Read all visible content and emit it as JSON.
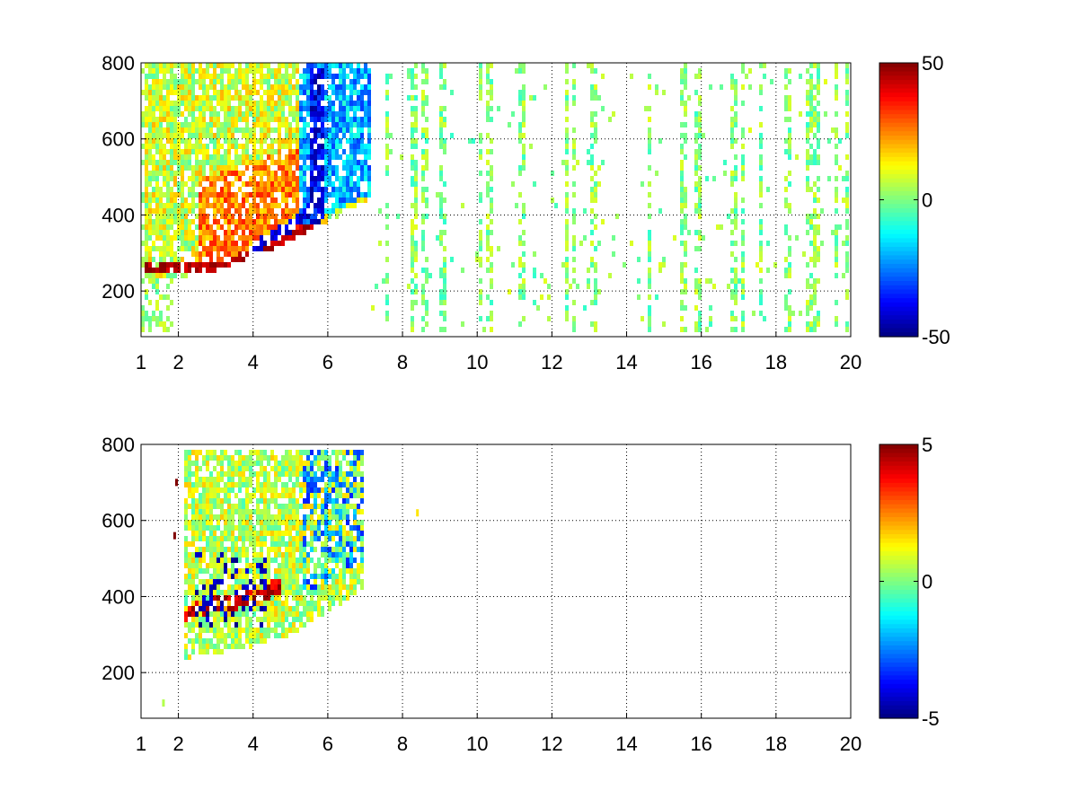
{
  "figure": {
    "background": "#ffffff",
    "colormap": "jet"
  },
  "chart_data": [
    {
      "type": "heatmap",
      "title": "",
      "xlabel": "",
      "ylabel": "",
      "xlim": [
        1,
        20
      ],
      "ylim": [
        80,
        800
      ],
      "x_ticks": [
        1,
        2,
        4,
        6,
        8,
        10,
        12,
        14,
        16,
        18,
        20
      ],
      "x_tick_labels": [
        "1",
        "2",
        "4",
        "6",
        "8",
        "10",
        "12",
        "14",
        "16",
        "18",
        "20"
      ],
      "y_ticks": [
        200,
        400,
        600,
        800
      ],
      "y_tick_labels": [
        "200",
        "400",
        "600",
        "800"
      ],
      "grid": true,
      "grid_style": "dotted",
      "colorbar": {
        "clim": [
          -50,
          50
        ],
        "tick_values": [
          50,
          0,
          -50
        ],
        "tick_labels": [
          "50",
          "0",
          "-50"
        ]
      },
      "pattern": {
        "dense_region": {
          "x_range": [
            1.1,
            7.2
          ],
          "lower_boundary": [
            [
              2.3,
              240
            ],
            [
              3,
              255
            ],
            [
              4,
              290
            ],
            [
              5,
              330
            ],
            [
              6,
              380
            ],
            [
              7,
              430
            ]
          ],
          "upper_limit": 800
        },
        "hot_band": {
          "points": [
            [
              2.3,
              255
            ],
            [
              3,
              262
            ],
            [
              4,
              300
            ],
            [
              5,
              345
            ],
            [
              5.8,
              380
            ]
          ],
          "value": 45
        },
        "warm_area": {
          "x_range": [
            2.5,
            5.8
          ],
          "value": 25
        },
        "cold_band": {
          "points": [
            [
              4,
              315
            ],
            [
              5,
              370
            ],
            [
              5.6,
              420
            ],
            [
              5.8,
              600
            ],
            [
              5.9,
              760
            ]
          ],
          "value": -42
        },
        "cool_area": {
          "x_range": [
            5.2,
            7.2
          ],
          "value": -20
        },
        "sparse_region": {
          "x_range": [
            7.2,
            20
          ],
          "value_range": [
            -8,
            10
          ],
          "columns": [
            7.6,
            8.3,
            8.6,
            9.1,
            10.1,
            10.3,
            11.2,
            12.4,
            12.6,
            13.1,
            14.6,
            15.5,
            15.9,
            16.9,
            17.1,
            17.6,
            18.3,
            18.9,
            19.1,
            19.6,
            19.9
          ]
        }
      }
    },
    {
      "type": "heatmap",
      "title": "",
      "xlabel": "",
      "ylabel": "",
      "xlim": [
        1,
        20
      ],
      "ylim": [
        80,
        800
      ],
      "x_ticks": [
        1,
        2,
        4,
        6,
        8,
        10,
        12,
        14,
        16,
        18,
        20
      ],
      "x_tick_labels": [
        "1",
        "2",
        "4",
        "6",
        "8",
        "10",
        "12",
        "14",
        "16",
        "18",
        "20"
      ],
      "y_ticks": [
        200,
        400,
        600,
        800
      ],
      "y_tick_labels": [
        "200",
        "400",
        "600",
        "800"
      ],
      "grid": true,
      "grid_style": "dotted",
      "colorbar": {
        "clim": [
          -5,
          5
        ],
        "tick_values": [
          5,
          0,
          -5
        ],
        "tick_labels": [
          "5",
          "0",
          "-5"
        ]
      },
      "pattern": {
        "dense_region": {
          "x_range": [
            2.2,
            7
          ],
          "lower_boundary": [
            [
              2.3,
              240
            ],
            [
              3,
              250
            ],
            [
              4,
              270
            ],
            [
              5,
              300
            ],
            [
              6,
              360
            ],
            [
              7,
              420
            ]
          ],
          "upper_limit": 790
        },
        "hot_band": {
          "points": [
            [
              2.4,
              360
            ],
            [
              3,
              380
            ],
            [
              3.6,
              390
            ],
            [
              4.2,
              400
            ],
            [
              4.7,
              430
            ]
          ],
          "value": 5
        },
        "cold_speckle": {
          "x_range": [
            2.4,
            4.4
          ],
          "y_range": [
            320,
            520
          ],
          "value": -5
        },
        "isolated_marks": [
          [
            1.9,
            560,
            5
          ],
          [
            1.95,
            700,
            5
          ],
          [
            1.6,
            120,
            0.5
          ],
          [
            8.4,
            620,
            1.5
          ]
        ]
      }
    }
  ]
}
